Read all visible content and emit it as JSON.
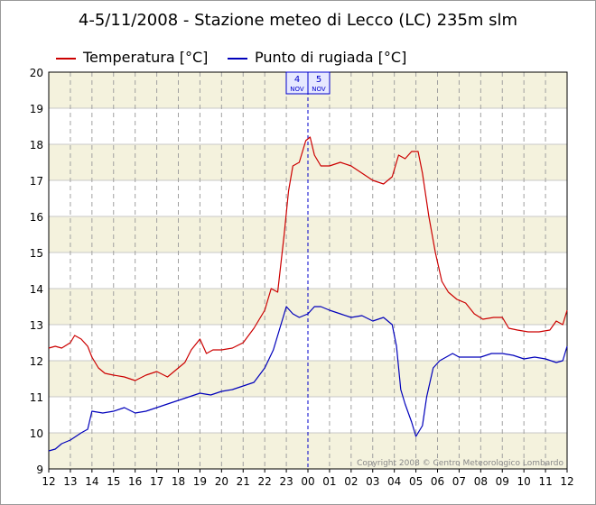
{
  "chart_data": {
    "type": "line",
    "title": "4-5/11/2008 - Stazione meteo di Lecco (LC) 235m slm",
    "x_tick_labels": [
      "12",
      "13",
      "14",
      "15",
      "16",
      "17",
      "18",
      "19",
      "20",
      "21",
      "22",
      "23",
      "00",
      "01",
      "02",
      "03",
      "04",
      "05",
      "06",
      "07",
      "08",
      "09",
      "10",
      "11",
      "12"
    ],
    "x_unit": "hours (4 Nov 12:00 to 5 Nov 12:00)",
    "ylim": [
      9,
      20
    ],
    "y_ticks": [
      9,
      10,
      11,
      12,
      13,
      14,
      15,
      16,
      17,
      18,
      19,
      20
    ],
    "grid": true,
    "legend_position": "top-left",
    "day_markers": [
      {
        "x": 12,
        "label_top": "4",
        "label_bottom": "NOV"
      },
      {
        "x": 12,
        "label_top": "5",
        "label_bottom": "NOV"
      }
    ],
    "copyright": "Copyright 2008 © Centro Meteorologico Lombardo",
    "series": [
      {
        "name": "Temperatura [°C]",
        "color": "#cc0000",
        "points": [
          [
            0,
            12.35
          ],
          [
            0.3,
            12.4
          ],
          [
            0.6,
            12.35
          ],
          [
            1,
            12.5
          ],
          [
            1.2,
            12.7
          ],
          [
            1.5,
            12.6
          ],
          [
            1.8,
            12.4
          ],
          [
            2,
            12.1
          ],
          [
            2.3,
            11.8
          ],
          [
            2.6,
            11.65
          ],
          [
            3,
            11.6
          ],
          [
            3.5,
            11.55
          ],
          [
            4,
            11.45
          ],
          [
            4.5,
            11.6
          ],
          [
            5,
            11.7
          ],
          [
            5.5,
            11.55
          ],
          [
            6,
            11.8
          ],
          [
            6.3,
            11.95
          ],
          [
            6.6,
            12.3
          ],
          [
            7,
            12.6
          ],
          [
            7.3,
            12.2
          ],
          [
            7.6,
            12.3
          ],
          [
            8,
            12.3
          ],
          [
            8.5,
            12.35
          ],
          [
            9,
            12.5
          ],
          [
            9.5,
            12.9
          ],
          [
            10,
            13.4
          ],
          [
            10.3,
            14.0
          ],
          [
            10.6,
            13.9
          ],
          [
            10.9,
            15.5
          ],
          [
            11.1,
            16.7
          ],
          [
            11.3,
            17.4
          ],
          [
            11.6,
            17.5
          ],
          [
            11.9,
            18.1
          ],
          [
            12.1,
            18.2
          ],
          [
            12.3,
            17.7
          ],
          [
            12.6,
            17.4
          ],
          [
            13,
            17.4
          ],
          [
            13.5,
            17.5
          ],
          [
            14,
            17.4
          ],
          [
            14.5,
            17.2
          ],
          [
            15,
            17.0
          ],
          [
            15.5,
            16.9
          ],
          [
            15.9,
            17.1
          ],
          [
            16.2,
            17.7
          ],
          [
            16.5,
            17.6
          ],
          [
            16.8,
            17.8
          ],
          [
            17.1,
            17.8
          ],
          [
            17.3,
            17.2
          ],
          [
            17.6,
            16.0
          ],
          [
            17.9,
            15.0
          ],
          [
            18.2,
            14.2
          ],
          [
            18.5,
            13.9
          ],
          [
            18.9,
            13.7
          ],
          [
            19.3,
            13.6
          ],
          [
            19.7,
            13.3
          ],
          [
            20.1,
            13.15
          ],
          [
            20.6,
            13.2
          ],
          [
            21,
            13.2
          ],
          [
            21.3,
            12.9
          ],
          [
            21.7,
            12.85
          ],
          [
            22.2,
            12.8
          ],
          [
            22.7,
            12.8
          ],
          [
            23.2,
            12.85
          ],
          [
            23.5,
            13.1
          ],
          [
            23.8,
            13.0
          ],
          [
            24,
            13.4
          ]
        ]
      },
      {
        "name": "Punto di rugiada [°C]",
        "color": "#0000bb",
        "points": [
          [
            0,
            9.5
          ],
          [
            0.3,
            9.55
          ],
          [
            0.6,
            9.7
          ],
          [
            1,
            9.8
          ],
          [
            1.5,
            10.0
          ],
          [
            1.8,
            10.1
          ],
          [
            2,
            10.6
          ],
          [
            2.5,
            10.55
          ],
          [
            3,
            10.6
          ],
          [
            3.5,
            10.7
          ],
          [
            4,
            10.55
          ],
          [
            4.5,
            10.6
          ],
          [
            5,
            10.7
          ],
          [
            5.5,
            10.8
          ],
          [
            6,
            10.9
          ],
          [
            6.5,
            11.0
          ],
          [
            7,
            11.1
          ],
          [
            7.5,
            11.05
          ],
          [
            8,
            11.15
          ],
          [
            8.5,
            11.2
          ],
          [
            9,
            11.3
          ],
          [
            9.5,
            11.4
          ],
          [
            10,
            11.8
          ],
          [
            10.4,
            12.3
          ],
          [
            10.7,
            12.9
          ],
          [
            11,
            13.5
          ],
          [
            11.3,
            13.3
          ],
          [
            11.6,
            13.2
          ],
          [
            12,
            13.3
          ],
          [
            12.3,
            13.5
          ],
          [
            12.6,
            13.5
          ],
          [
            13,
            13.4
          ],
          [
            13.5,
            13.3
          ],
          [
            14,
            13.2
          ],
          [
            14.5,
            13.25
          ],
          [
            15,
            13.1
          ],
          [
            15.5,
            13.2
          ],
          [
            15.9,
            13.0
          ],
          [
            16.1,
            12.4
          ],
          [
            16.3,
            11.2
          ],
          [
            16.5,
            10.8
          ],
          [
            16.8,
            10.3
          ],
          [
            17,
            9.9
          ],
          [
            17.3,
            10.2
          ],
          [
            17.5,
            11.0
          ],
          [
            17.8,
            11.8
          ],
          [
            18.1,
            12.0
          ],
          [
            18.4,
            12.1
          ],
          [
            18.7,
            12.2
          ],
          [
            19,
            12.1
          ],
          [
            19.5,
            12.1
          ],
          [
            20,
            12.1
          ],
          [
            20.5,
            12.2
          ],
          [
            21,
            12.2
          ],
          [
            21.5,
            12.15
          ],
          [
            22,
            12.05
          ],
          [
            22.5,
            12.1
          ],
          [
            23,
            12.05
          ],
          [
            23.5,
            11.95
          ],
          [
            23.8,
            12.0
          ],
          [
            24,
            12.4
          ]
        ]
      }
    ]
  }
}
